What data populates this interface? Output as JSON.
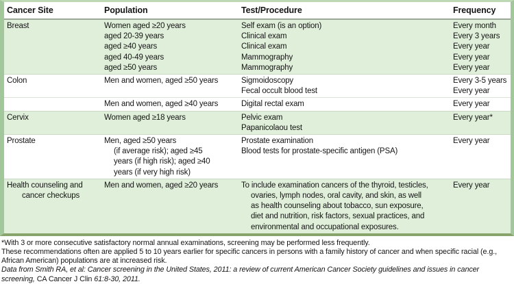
{
  "table": {
    "columns": [
      "Cancer Site",
      "Population",
      "Test/Procedure",
      "Frequency"
    ],
    "sections": [
      {
        "name": "breast",
        "shaded": true,
        "divider": "none",
        "site": [
          "Breast"
        ],
        "population": [
          "Women aged ≥20 years",
          "aged 20-39 years",
          "aged ≥40 years",
          "aged 40-49 years",
          "aged ≥50 years"
        ],
        "test": [
          "Self exam (is an option)",
          "Clinical exam",
          "Clinical exam",
          "Mammography",
          "Mammography"
        ],
        "frequency": [
          "Every month",
          "Every 3 years",
          "Every year",
          "Every year",
          "Every year"
        ]
      },
      {
        "name": "colon",
        "shaded": false,
        "divider": "strong",
        "site": [
          "Colon"
        ],
        "population": [
          "Men and women, aged ≥50 years"
        ],
        "test": [
          "Sigmoidoscopy",
          "Fecal occult blood test"
        ],
        "frequency": [
          "Every 3-5 years",
          "Every year"
        ]
      },
      {
        "name": "colon-continued",
        "shaded": false,
        "divider": "faint",
        "site": [],
        "population": [
          "Men and women, aged ≥40 years"
        ],
        "test": [
          "Digital rectal exam"
        ],
        "frequency": [
          "Every year"
        ]
      },
      {
        "name": "cervix",
        "shaded": true,
        "divider": "strong",
        "site": [
          "Cervix"
        ],
        "population": [
          "Women aged ≥18 years"
        ],
        "test": [
          "Pelvic exam",
          "Papanicolaou test"
        ],
        "frequency": [
          "Every year*"
        ]
      },
      {
        "name": "prostate",
        "shaded": false,
        "divider": "strong",
        "site": [
          "Prostate"
        ],
        "population": [
          "Men, aged ≥50 years",
          {
            "text": "(if average risk); aged ≥45",
            "indent": true
          },
          {
            "text": "years (if high risk); aged ≥40",
            "indent": true
          },
          {
            "text": "years (if very high risk)",
            "indent": true
          }
        ],
        "test": [
          "Prostate examination",
          "Blood tests for prostate-specific antigen (PSA)"
        ],
        "frequency": [
          "Every year"
        ]
      },
      {
        "name": "health-counseling",
        "shaded": true,
        "divider": "strong",
        "site": [
          "Health counseling and",
          {
            "text": "cancer checkups",
            "indent": true
          }
        ],
        "population": [
          "Men and women, aged ≥20 years"
        ],
        "test": [
          "To include examination cancers of the thyroid, testicles,",
          {
            "text": "ovaries, lymph nodes, oral cavity, and skin, as well",
            "indent": true
          },
          {
            "text": "as health counseling about tobacco, sun exposure,",
            "indent": true
          },
          {
            "text": "diet and nutrition, risk factors, sexual practices, and",
            "indent": true
          },
          {
            "text": "environmental and occupational exposures.",
            "indent": true
          }
        ],
        "frequency": [
          "Every year"
        ]
      }
    ]
  },
  "footnotes": [
    {
      "parts": [
        {
          "text": "*With 3 or more consecutive satisfactory normal annual examinations, screening may be performed less frequently.",
          "italic": false
        }
      ]
    },
    {
      "parts": [
        {
          "text": "These recommendations often are applied 5 to 10 years earlier for specific cancers in persons with a family history of cancer and when specific racial (e.g., African American) populations are at increased risk.",
          "italic": false
        }
      ]
    },
    {
      "parts": [
        {
          "text": "Data from Smith RA, et al: Cancer screening in the United States, 2011: a review of current American Cancer Society guidelines and issues in cancer screening, ",
          "italic": true
        },
        {
          "text": "CA Cancer J Clin ",
          "italic": false
        },
        {
          "text": "61:8-30, 2011.",
          "italic": true
        }
      ]
    }
  ],
  "colors": {
    "row_shaded_bg": "#e0efda",
    "border_side": "#a2c79a",
    "border_top": "#bdd8b4",
    "border_bottom": "#87a56a",
    "header_rule": "#9aa796",
    "section_rule": "#c9d8c3",
    "text": "#141414"
  }
}
